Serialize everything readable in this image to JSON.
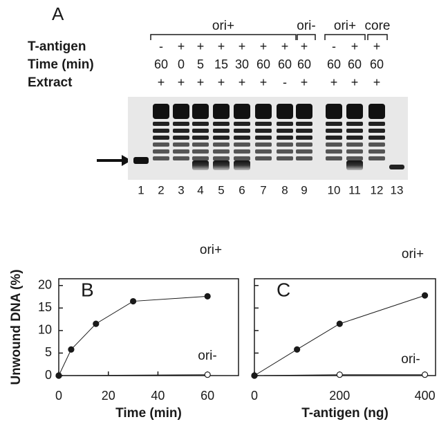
{
  "gel": {
    "panel": "A",
    "groups": [
      "ori+",
      "ori-",
      "ori+",
      "core"
    ],
    "rows": [
      {
        "label": "T-antigen",
        "values": [
          "-",
          "+",
          "+",
          "+",
          "+",
          "+",
          "+",
          "+",
          "-",
          "+",
          "+"
        ]
      },
      {
        "label": "Time (min)",
        "values": [
          60,
          0,
          5,
          15,
          30,
          60,
          60,
          60,
          60,
          60,
          60
        ]
      },
      {
        "label": "Extract",
        "values": [
          "+",
          "+",
          "+",
          "+",
          "+",
          "+",
          "-",
          "+",
          "+",
          "+",
          "+"
        ]
      }
    ],
    "lane_numbers": [
      1,
      2,
      3,
      4,
      5,
      6,
      7,
      8,
      9,
      10,
      11,
      12,
      13
    ]
  },
  "chart_data": [
    {
      "type": "line",
      "label": "B",
      "ylabel": "Unwound DNA (%)",
      "xlabel": "Time (min)",
      "xlim": [
        0,
        72.5
      ],
      "xticks": [
        0,
        20,
        40,
        60
      ],
      "ylim": [
        0,
        21.5
      ],
      "yticks": [
        0,
        5,
        10,
        15,
        20
      ],
      "series": [
        {
          "name": "ori+",
          "color": "#1a1a1a",
          "marker": "filled",
          "x": [
            0,
            5,
            15,
            30,
            60
          ],
          "values": [
            0,
            5.8,
            11.5,
            16.5,
            17.6
          ]
        },
        {
          "name": "ori-",
          "color": "#1a1a1a",
          "marker": "open",
          "x": [
            0,
            60
          ],
          "values": [
            0,
            0.2
          ]
        }
      ]
    },
    {
      "type": "line",
      "label": "C",
      "xlabel": "T-antigen (ng)",
      "xlim": [
        0,
        425
      ],
      "xticks": [
        0,
        200,
        400
      ],
      "ylim": [
        0,
        21.5
      ],
      "yticks": [
        0,
        5,
        10,
        15,
        20
      ],
      "series": [
        {
          "name": "ori+",
          "color": "#1a1a1a",
          "marker": "filled",
          "x": [
            0,
            100,
            200,
            400
          ],
          "values": [
            0,
            5.8,
            11.5,
            17.8
          ]
        },
        {
          "name": "ori-",
          "color": "#1a1a1a",
          "marker": "open",
          "x": [
            0,
            200,
            400
          ],
          "values": [
            0,
            0.2,
            0.2
          ]
        }
      ]
    }
  ]
}
